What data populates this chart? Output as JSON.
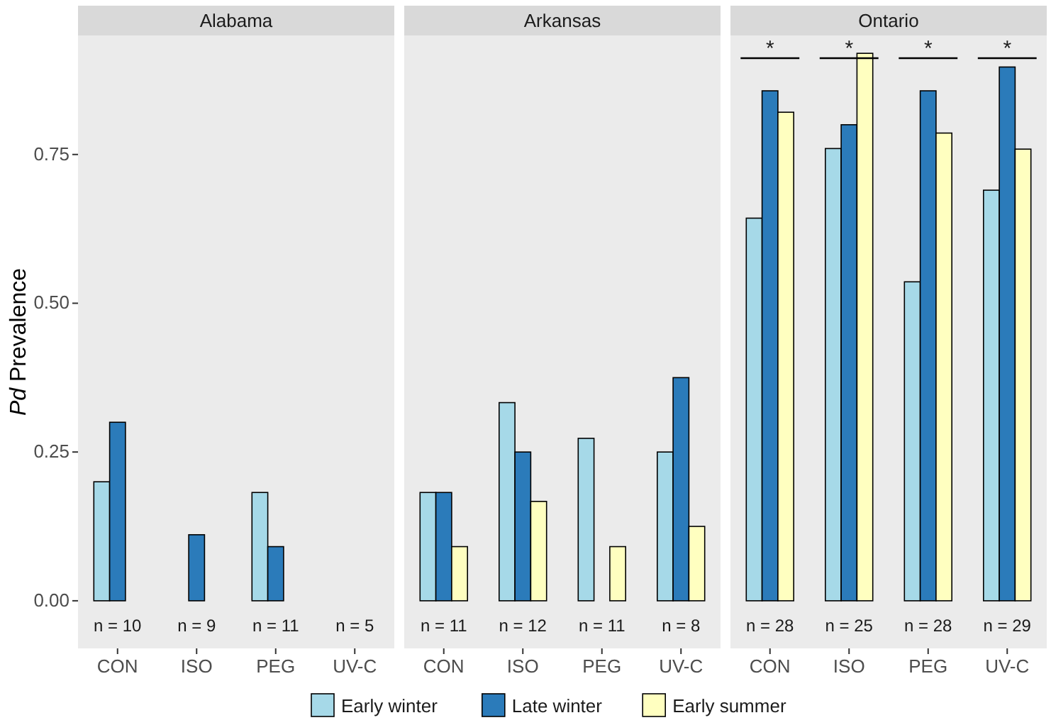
{
  "chart_data": [
    {
      "type": "bar",
      "title": "Alabama",
      "ylabel": "Pd Prevalence",
      "categories": [
        "CON",
        "ISO",
        "PEG",
        "UV-C"
      ],
      "ylim": [
        -0.08,
        0.95
      ],
      "yticks": [
        {
          "value": 0,
          "label": "0.00"
        },
        {
          "value": 0.25,
          "label": "0.25"
        },
        {
          "value": 0.5,
          "label": "0.50"
        },
        {
          "value": 0.75,
          "label": "0.75"
        }
      ],
      "legend": "bottom",
      "tick_labels": "xy",
      "series": [
        {
          "name": "Early winter",
          "color": "#a6d9e8",
          "values": [
            0.2,
            0,
            0.182,
            0
          ]
        },
        {
          "name": "Late winter",
          "color": "#2b7bba",
          "values": [
            0.3,
            0.111,
            0.091,
            0
          ]
        },
        {
          "name": "Early summer",
          "color": "#ffffc0",
          "values": [
            0,
            0,
            0,
            0
          ]
        }
      ],
      "annotations": [
        "n = 10",
        "n = 9",
        "n = 11",
        "n = 5"
      ]
    },
    {
      "type": "bar",
      "title": "Arkansas",
      "categories": [
        "CON",
        "ISO",
        "PEG",
        "UV-C"
      ],
      "ylim": [
        -0.08,
        0.95
      ],
      "tick_labels": "x",
      "series": [
        {
          "color": "#a6d9e8",
          "values": [
            0.182,
            0.333,
            0.273,
            0.25
          ]
        },
        {
          "color": "#2b7bba",
          "values": [
            0.182,
            0.25,
            0,
            0.375
          ]
        },
        {
          "color": "#ffffc0",
          "values": [
            0.091,
            0.167,
            0.091,
            0.125
          ]
        }
      ],
      "annotations": [
        "n = 11",
        "n = 12",
        "n = 11",
        "n = 8"
      ]
    },
    {
      "type": "bar",
      "title": "Ontario",
      "categories": [
        "CON",
        "ISO",
        "PEG",
        "UV-C"
      ],
      "ylim": [
        -0.08,
        0.95
      ],
      "tick_labels": "x",
      "series": [
        {
          "color": "#a6d9e8",
          "values": [
            0.643,
            0.76,
            0.536,
            0.69
          ]
        },
        {
          "color": "#2b7bba",
          "values": [
            0.857,
            0.8,
            0.857,
            0.897
          ]
        },
        {
          "color": "#ffffc0",
          "values": [
            0.821,
            0.92,
            0.786,
            0.759
          ]
        }
      ],
      "annotations": [
        "n = 28",
        "n = 25",
        "n = 28",
        "n = 29",
        "*",
        "*",
        "*",
        "*"
      ]
    }
  ]
}
